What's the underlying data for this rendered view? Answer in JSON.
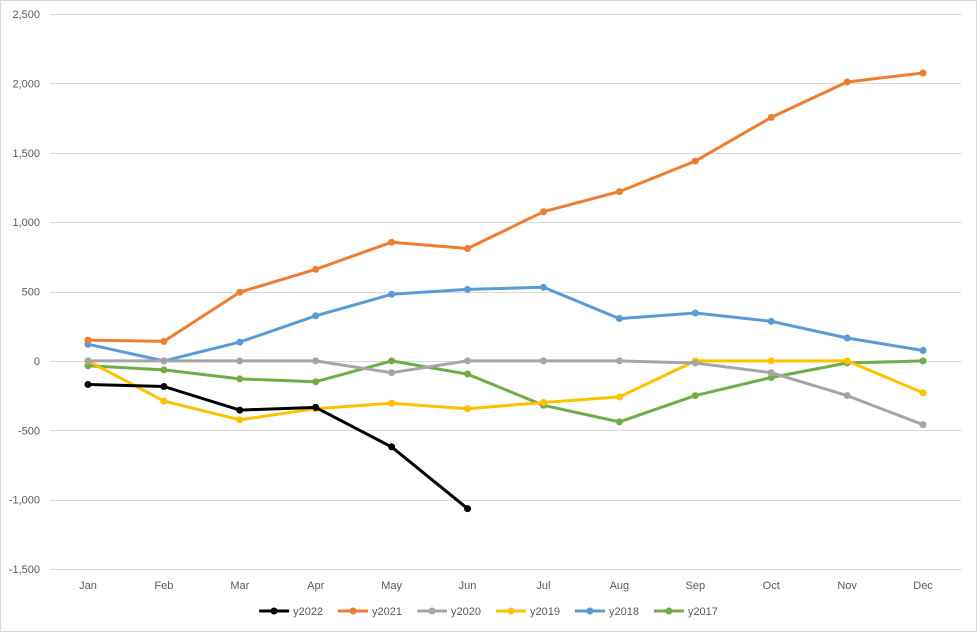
{
  "chart_data": {
    "type": "line",
    "title": "",
    "xlabel": "",
    "ylabel": "",
    "categories": [
      "Jan",
      "Feb",
      "Mar",
      "Apr",
      "May",
      "Jun",
      "Jul",
      "Aug",
      "Sep",
      "Oct",
      "Nov",
      "Dec"
    ],
    "ylim": [
      -1500,
      2500
    ],
    "yticks": [
      2500,
      2000,
      1500,
      1000,
      500,
      0,
      -500,
      -1000,
      -1500
    ],
    "ytick_labels": [
      "2,500",
      "2,000",
      "1,500",
      "1,000",
      "500",
      "0",
      "-500",
      "-1,000",
      "-1,500"
    ],
    "grid": true,
    "legend_position": "bottom",
    "series": [
      {
        "name": "y2022",
        "color": "#000000",
        "values": [
          -170,
          -185,
          -355,
          -335,
          -620,
          -1065,
          null,
          null,
          null,
          null,
          null,
          null
        ]
      },
      {
        "name": "y2021",
        "color": "#ED7D31",
        "values": [
          150,
          140,
          495,
          660,
          855,
          810,
          1075,
          1220,
          1440,
          1755,
          2010,
          2075
        ]
      },
      {
        "name": "y2020",
        "color": "#A5A5A5",
        "values": [
          0,
          0,
          0,
          0,
          -85,
          0,
          0,
          0,
          -15,
          -85,
          -250,
          -460
        ]
      },
      {
        "name": "y2019",
        "color": "#FFC000",
        "values": [
          0,
          -290,
          -425,
          -345,
          -305,
          -345,
          -300,
          -260,
          0,
          0,
          0,
          -230
        ]
      },
      {
        "name": "y2018",
        "color": "#5B9BD5",
        "values": [
          120,
          0,
          135,
          325,
          480,
          515,
          530,
          305,
          345,
          285,
          165,
          75
        ]
      },
      {
        "name": "y2017",
        "color": "#70AD47",
        "values": [
          -35,
          -65,
          -130,
          -150,
          0,
          -95,
          -320,
          -440,
          -250,
          -120,
          -15,
          0
        ]
      }
    ]
  }
}
